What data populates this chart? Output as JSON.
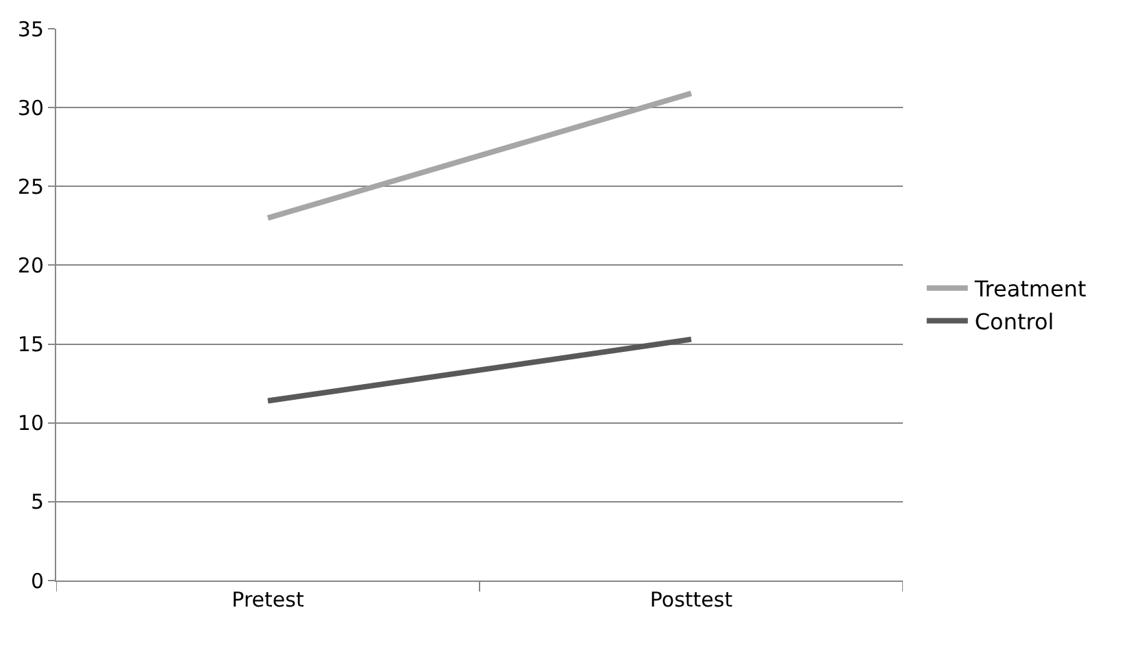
{
  "chart_data": {
    "type": "line",
    "categories": [
      "Pretest",
      "Posttest"
    ],
    "series": [
      {
        "name": "Treatment",
        "color": "#a6a6a6",
        "values": [
          23.0,
          30.9
        ]
      },
      {
        "name": "Control",
        "color": "#595959",
        "values": [
          11.4,
          15.3
        ]
      }
    ],
    "ylim": [
      0,
      35
    ],
    "yticks": [
      0,
      5,
      10,
      15,
      20,
      25,
      30,
      35
    ],
    "grid": "y",
    "legend": "right",
    "marker": "none",
    "line_style": "solid"
  }
}
